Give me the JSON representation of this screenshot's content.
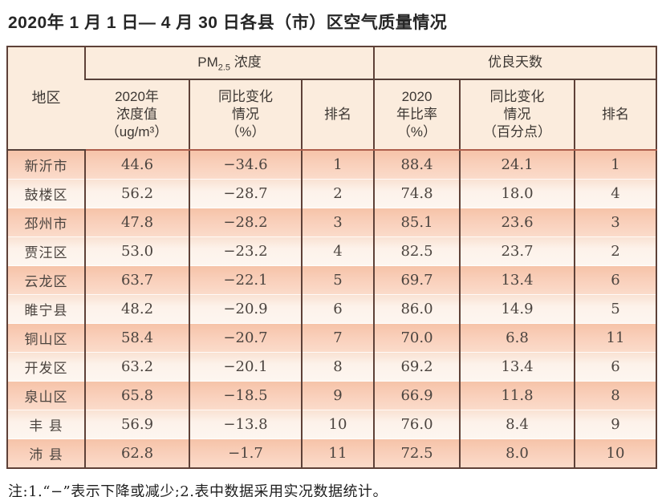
{
  "title": "2020年 1 月 1 日— 4 月 30 日各县（市）区空气质量情况",
  "table": {
    "region_header": "地区",
    "group_headers": {
      "pm25_prefix": "PM",
      "pm25_sub": "2.5",
      "pm25_suffix": " 浓度",
      "good_days": "优良天数"
    },
    "sub_headers": {
      "pm_value": "2020年\n浓度值\n（ug/m³）",
      "pm_change": "同比变化\n情况\n（%）",
      "pm_rank": "排名",
      "gd_ratio": "2020\n年比率\n（%）",
      "gd_change": "同比变化\n情况\n（百分点）",
      "gd_rank": "排名"
    },
    "rows": [
      {
        "region": "新沂市",
        "pm_value": "44.6",
        "pm_change": "−34.6",
        "pm_rank": "1",
        "gd_ratio": "88.4",
        "gd_change": "24.1",
        "gd_rank": "1"
      },
      {
        "region": "鼓楼区",
        "pm_value": "56.2",
        "pm_change": "−28.7",
        "pm_rank": "2",
        "gd_ratio": "74.8",
        "gd_change": "18.0",
        "gd_rank": "4"
      },
      {
        "region": "邳州市",
        "pm_value": "47.8",
        "pm_change": "−28.2",
        "pm_rank": "3",
        "gd_ratio": "85.1",
        "gd_change": "23.6",
        "gd_rank": "3"
      },
      {
        "region": "贾汪区",
        "pm_value": "53.0",
        "pm_change": "−23.2",
        "pm_rank": "4",
        "gd_ratio": "82.5",
        "gd_change": "23.7",
        "gd_rank": "2"
      },
      {
        "region": "云龙区",
        "pm_value": "63.7",
        "pm_change": "−22.1",
        "pm_rank": "5",
        "gd_ratio": "69.7",
        "gd_change": "13.4",
        "gd_rank": "6"
      },
      {
        "region": "睢宁县",
        "pm_value": "48.2",
        "pm_change": "−20.9",
        "pm_rank": "6",
        "gd_ratio": "86.0",
        "gd_change": "14.9",
        "gd_rank": "5"
      },
      {
        "region": "铜山区",
        "pm_value": "58.4",
        "pm_change": "−20.7",
        "pm_rank": "7",
        "gd_ratio": "70.0",
        "gd_change": "6.8",
        "gd_rank": "11"
      },
      {
        "region": "开发区",
        "pm_value": "63.2",
        "pm_change": "−20.1",
        "pm_rank": "8",
        "gd_ratio": "69.2",
        "gd_change": "13.4",
        "gd_rank": "6"
      },
      {
        "region": "泉山区",
        "pm_value": "65.8",
        "pm_change": "−18.5",
        "pm_rank": "9",
        "gd_ratio": "66.9",
        "gd_change": "11.8",
        "gd_rank": "8"
      },
      {
        "region": "丰 县",
        "pm_value": "56.9",
        "pm_change": "−13.8",
        "pm_rank": "10",
        "gd_ratio": "76.0",
        "gd_change": "8.4",
        "gd_rank": "9"
      },
      {
        "region": "沛 县",
        "pm_value": "62.8",
        "pm_change": "−1.7",
        "pm_rank": "11",
        "gd_ratio": "72.5",
        "gd_change": "8.0",
        "gd_rank": "10"
      }
    ]
  },
  "note": "注:1.“−”表示下降或减少;2.表中数据采用实况数据统计。",
  "colors": {
    "border_dark": "#5e4138",
    "border_red": "#ae5f4d",
    "header_bg": "#fbecdd",
    "row_peach": "#f9cfba",
    "row_light": "#fdf2ea",
    "text": "#4b443f"
  }
}
